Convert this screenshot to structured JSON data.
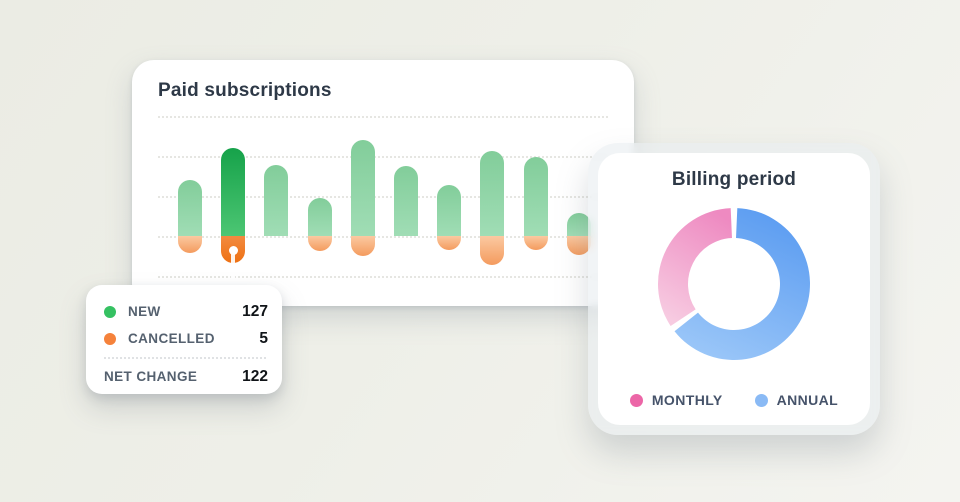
{
  "page": {
    "background_top_left": "#ebece4",
    "background_bottom_right": "#f4f4f1"
  },
  "chart_data": [
    {
      "type": "bar",
      "title": "Paid subscriptions",
      "subtype": "diverging",
      "value_scale": "relative units (no axis tick labels visible)",
      "gridline_count": 5,
      "baseline_gridline_index": 3,
      "bars": [
        {
          "new": 56,
          "cancelled": 17,
          "selected": false
        },
        {
          "new": 88,
          "cancelled": 27,
          "selected": true
        },
        {
          "new": 71,
          "cancelled": 0,
          "selected": false
        },
        {
          "new": 38,
          "cancelled": 15,
          "selected": false
        },
        {
          "new": 96,
          "cancelled": 20,
          "selected": false
        },
        {
          "new": 70,
          "cancelled": 0,
          "selected": false
        },
        {
          "new": 51,
          "cancelled": 14,
          "selected": false
        },
        {
          "new": 85,
          "cancelled": 29,
          "selected": false
        },
        {
          "new": 79,
          "cancelled": 14,
          "selected": false
        },
        {
          "new": 23,
          "cancelled": 19,
          "selected": false
        }
      ],
      "colors": {
        "new_top": "#82cd9a",
        "new_bottom": "#a0ddb5",
        "new_selected_top": "#16a24a",
        "new_selected_bottom": "#4cc673",
        "cancelled_top": "#fbc9a1",
        "cancelled_bottom": "#f49b5e",
        "cancelled_selected_top": "#f28a40",
        "cancelled_selected_bottom": "#ee7113"
      },
      "tooltip": {
        "rows": [
          {
            "label": "NEW",
            "value": "127",
            "dot_color": "#35c162"
          },
          {
            "label": "CANCELLED",
            "value": "5",
            "dot_color": "#f5823b"
          }
        ],
        "total": {
          "label": "NET CHANGE",
          "value": "122"
        }
      }
    },
    {
      "type": "pie",
      "title": "Billing period",
      "donut": true,
      "gap_degrees": 5,
      "legend_position": "bottom",
      "slices": [
        {
          "label": "MONTHLY",
          "fraction": 0.35,
          "color_top": "#ee8ac1",
          "color_bottom": "#f7cbe1",
          "legend_dot_color": "#ec66a7"
        },
        {
          "label": "ANNUAL",
          "fraction": 0.65,
          "color_top": "#5b9cf1",
          "color_bottom": "#9ac6f8",
          "legend_dot_color": "#8abaf5"
        }
      ]
    }
  ]
}
